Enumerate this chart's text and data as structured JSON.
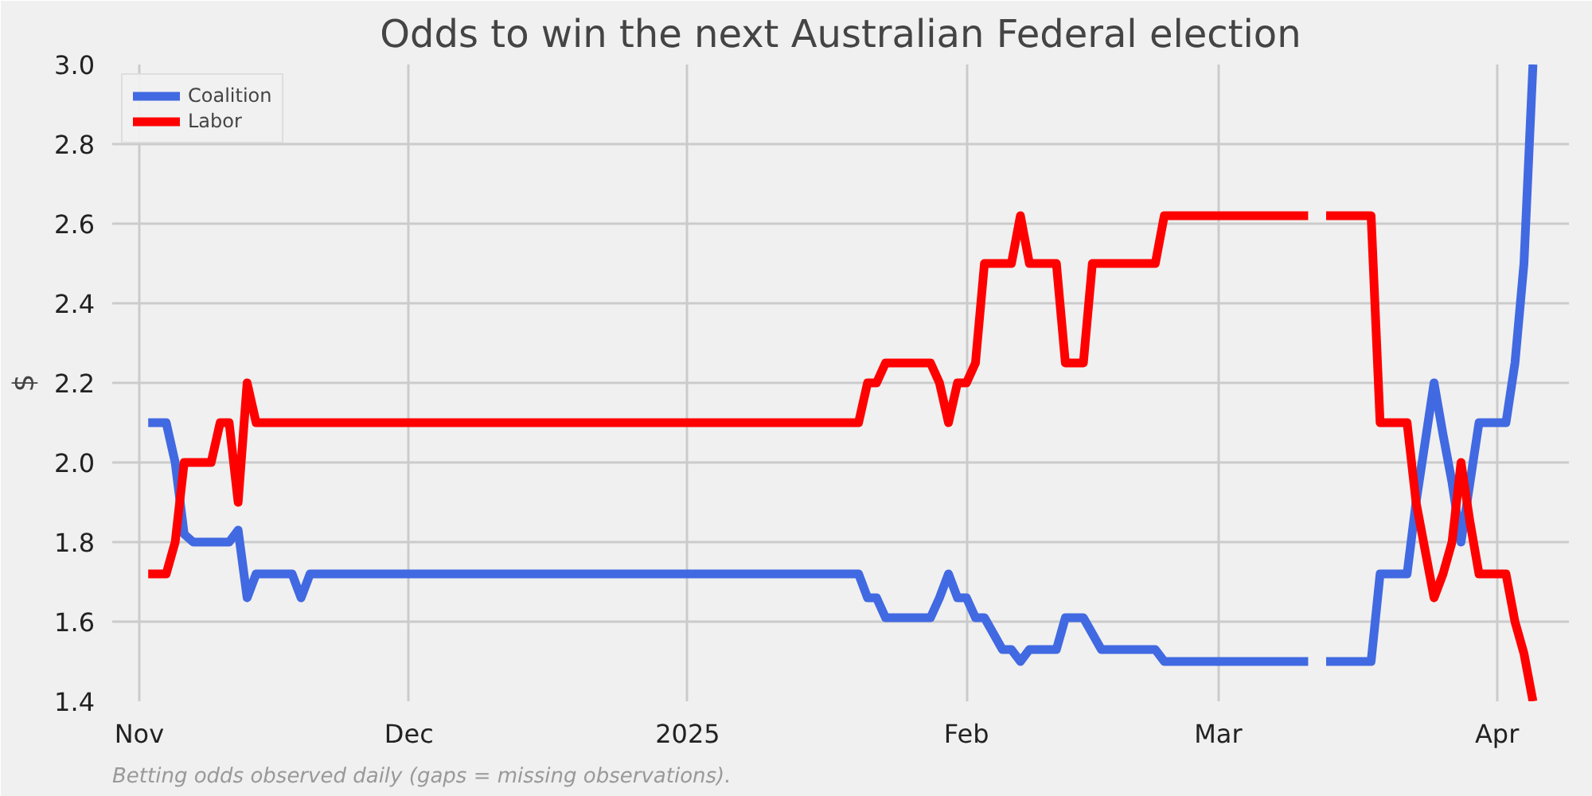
{
  "chart_data": {
    "type": "line",
    "title": "Odds to win the next Australian Federal election",
    "ylabel": "$",
    "annotations": [
      "Betting odds observed daily (gaps = missing observations)."
    ],
    "x": [
      "2024-11-02",
      "2024-11-04",
      "2024-11-05",
      "2024-11-06",
      "2024-11-07",
      "2024-11-09",
      "2024-11-10",
      "2024-11-11",
      "2024-11-12",
      "2024-11-13",
      "2024-11-14",
      "2024-11-18",
      "2024-11-19",
      "2024-11-20",
      "2025-01-20",
      "2025-01-21",
      "2025-01-22",
      "2025-01-23",
      "2025-01-28",
      "2025-01-29",
      "2025-01-30",
      "2025-01-31",
      "2025-02-01",
      "2025-02-02",
      "2025-02-03",
      "2025-02-04",
      "2025-02-05",
      "2025-02-06",
      "2025-02-07",
      "2025-02-08",
      "2025-02-11",
      "2025-02-12",
      "2025-02-14",
      "2025-02-15",
      "2025-02-16",
      "2025-02-22",
      "2025-02-23",
      "2025-03-11",
      "2025-03-12",
      "2025-03-13",
      "2025-03-18",
      "2025-03-19",
      "2025-03-22",
      "2025-03-23",
      "2025-03-24",
      "2025-03-25",
      "2025-03-26",
      "2025-03-27",
      "2025-03-28",
      "2025-03-29",
      "2025-03-30",
      "2025-04-02",
      "2025-04-03",
      "2025-04-04",
      "2025-04-05"
    ],
    "series": [
      {
        "name": "Coalition",
        "color": "#4169e1",
        "values": [
          2.1,
          2.1,
          2.0,
          1.82,
          1.8,
          1.8,
          1.8,
          1.8,
          1.83,
          1.66,
          1.72,
          1.72,
          1.66,
          1.72,
          1.72,
          1.66,
          1.66,
          1.61,
          1.61,
          1.66,
          1.72,
          1.66,
          1.66,
          1.61,
          1.61,
          1.57,
          1.53,
          1.53,
          1.5,
          1.53,
          1.53,
          1.61,
          1.61,
          1.57,
          1.53,
          1.53,
          1.5,
          1.5,
          null,
          1.5,
          1.5,
          1.72,
          1.72,
          1.9,
          2.05,
          2.2,
          2.07,
          1.95,
          1.8,
          1.95,
          2.1,
          2.1,
          2.25,
          2.5,
          3.0
        ]
      },
      {
        "name": "Labor",
        "color": "#ff0000",
        "values": [
          1.72,
          1.72,
          1.8,
          2.0,
          2.0,
          2.0,
          2.1,
          2.1,
          1.9,
          2.2,
          2.1,
          2.1,
          2.1,
          2.1,
          2.1,
          2.2,
          2.2,
          2.25,
          2.25,
          2.2,
          2.1,
          2.2,
          2.2,
          2.25,
          2.5,
          2.5,
          2.5,
          2.5,
          2.62,
          2.5,
          2.5,
          2.25,
          2.25,
          2.5,
          2.5,
          2.5,
          2.62,
          2.62,
          null,
          2.62,
          2.62,
          2.1,
          2.1,
          1.9,
          1.78,
          1.66,
          1.72,
          1.8,
          2.0,
          1.85,
          1.72,
          1.72,
          1.6,
          1.52,
          1.4
        ]
      }
    ],
    "xlim": [
      "2024-10-29",
      "2025-04-09"
    ],
    "xticks": [
      {
        "value": "2024-11-01",
        "label": "Nov"
      },
      {
        "value": "2024-12-01",
        "label": "Dec"
      },
      {
        "value": "2025-01-01",
        "label": "2025"
      },
      {
        "value": "2025-02-01",
        "label": "Feb"
      },
      {
        "value": "2025-03-01",
        "label": "Mar"
      },
      {
        "value": "2025-04-01",
        "label": "Apr"
      }
    ],
    "ylim": [
      1.4,
      3.0
    ],
    "yticks": [
      1.4,
      1.6,
      1.8,
      {
        "value": 2.0,
        "label": "2.0"
      },
      2.2,
      2.4,
      2.6,
      2.8,
      {
        "value": 3.0,
        "label": "3.0"
      }
    ],
    "grid": true,
    "legend": "top left",
    "line_style": "solid",
    "marker": "none"
  }
}
